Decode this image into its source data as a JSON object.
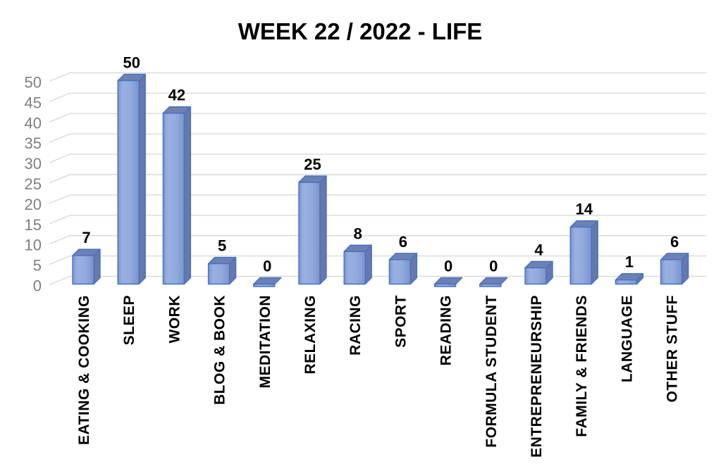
{
  "chart_data": {
    "type": "bar",
    "style": "3d-excel-bar",
    "title": "WEEK 22 / 2022 - LIFE",
    "xlabel": "",
    "ylabel": "",
    "categories": [
      "EATING & COOKING",
      "SLEEP",
      "WORK",
      "BLOG & BOOK",
      "MEDITATION",
      "RELAXING",
      "RACING",
      "SPORT",
      "READING",
      "FORMULA STUDENT",
      "ENTREPRENEURSHIP",
      "FAMILY & FRIENDS",
      "LANGUAGE",
      "OTHER STUFF"
    ],
    "values": [
      7,
      50,
      42,
      5,
      0,
      25,
      8,
      6,
      0,
      0,
      4,
      14,
      1,
      6
    ],
    "ylim": [
      0,
      50
    ],
    "yticks": [
      0,
      5,
      10,
      15,
      20,
      25,
      30,
      35,
      40,
      45,
      50
    ],
    "grid": true,
    "legend": false,
    "data_labels_shown": true,
    "colors": {
      "background": "#FFFFFF",
      "bar_front": "#92ABDE",
      "bar_front_light": "#98B0E1",
      "bar_front_dark": "#7C93CB",
      "bar_side": "#6678AC",
      "bar_top": "#6E81B2",
      "bar_border": "#4472C4",
      "gridline": "#D9D9D9",
      "tick_label": "#7F7F7F",
      "title_color": "#000000",
      "category_label": "#000000",
      "data_label": "#000000"
    }
  }
}
